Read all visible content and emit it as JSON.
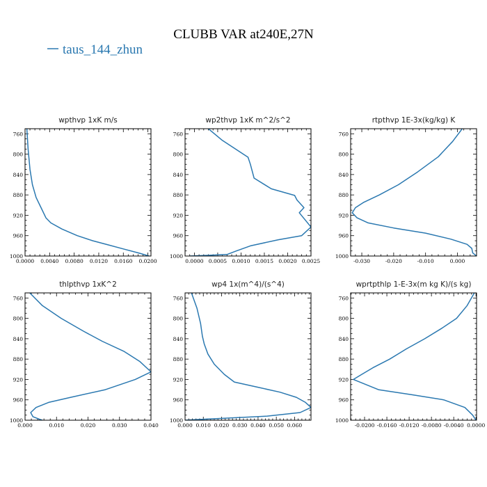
{
  "title": "CLUBB VAR at240E,27N",
  "legend": [
    {
      "label": "taus_144_zhun",
      "color": "#2a78b0"
    }
  ],
  "series_color": "#2a78b0",
  "chart_data": [
    {
      "type": "line",
      "title": "wpthvp  1xK m/s",
      "series_name": "taus_144_zhun",
      "xlim": [
        0.0,
        0.0205
      ],
      "ylim": [
        1000,
        750
      ],
      "y_inverted": true,
      "x_ticks": [
        0.0,
        0.004,
        0.008,
        0.012,
        0.016,
        0.02
      ],
      "x_tick_labels": [
        "0.0000",
        "0.0040",
        "0.0080",
        "0.0120",
        "0.0160",
        "0.0200"
      ],
      "y_ticks": [
        760,
        800,
        840,
        880,
        920,
        960,
        1000
      ],
      "y_tick_labels": [
        "760",
        "800",
        "840",
        "880",
        "920",
        "960",
        "1000"
      ],
      "x": [
        0.0003,
        0.0005,
        0.0008,
        0.0012,
        0.0018,
        0.0026,
        0.0034,
        0.0042,
        0.006,
        0.0085,
        0.011,
        0.0135,
        0.016,
        0.0185,
        0.0202
      ],
      "y": [
        750,
        790,
        830,
        860,
        885,
        905,
        925,
        935,
        947,
        960,
        970,
        978,
        986,
        994,
        1000
      ]
    },
    {
      "type": "line",
      "title": "wp2thvp  1xK m^2/s^2",
      "series_name": "taus_144_zhun",
      "xlim": [
        -0.0002,
        0.0025
      ],
      "ylim": [
        1000,
        750
      ],
      "y_inverted": true,
      "x_ticks": [
        0.0,
        0.0005,
        0.001,
        0.0015,
        0.002,
        0.0025
      ],
      "x_tick_labels": [
        "0.0000",
        "0.0005",
        "0.0010",
        "0.0015",
        "0.0020",
        "0.0025"
      ],
      "y_ticks": [
        760,
        800,
        840,
        880,
        920,
        960,
        1000
      ],
      "y_tick_labels": [
        "760",
        "800",
        "840",
        "880",
        "920",
        "960",
        "1000"
      ],
      "x": [
        0.0003,
        0.0006,
        0.00115,
        0.0012,
        0.00128,
        0.00165,
        0.00215,
        0.0022,
        0.00235,
        0.00225,
        0.0025,
        0.0023,
        0.0018,
        0.0012,
        0.0009,
        0.0007,
        0.0002,
        -0.0001
      ],
      "y": [
        750,
        773,
        806,
        820,
        847,
        868,
        881,
        890,
        905,
        915,
        943,
        960,
        968,
        980,
        990,
        997,
        999,
        1000
      ]
    },
    {
      "type": "line",
      "title": "rtpthvp  1E-3x(kg/kg) K",
      "series_name": "taus_144_zhun",
      "xlim": [
        -0.0335,
        0.006
      ],
      "ylim": [
        1000,
        750
      ],
      "y_inverted": true,
      "x_ticks": [
        -0.03,
        -0.02,
        -0.01,
        0.0
      ],
      "x_tick_labels": [
        "-0.030",
        "-0.020",
        "-0.010",
        "0.000"
      ],
      "y_ticks": [
        760,
        800,
        840,
        880,
        920,
        960,
        1000
      ],
      "y_tick_labels": [
        "760",
        "800",
        "840",
        "880",
        "920",
        "960",
        "1000"
      ],
      "x": [
        0.0015,
        -0.0015,
        -0.006,
        -0.0125,
        -0.0185,
        -0.0245,
        -0.0295,
        -0.032,
        -0.033,
        -0.0315,
        -0.028,
        -0.02,
        -0.01,
        -0.002,
        0.003,
        0.0045,
        0.0048,
        0.006
      ],
      "y": [
        750,
        775,
        805,
        835,
        860,
        880,
        895,
        905,
        915,
        925,
        935,
        945,
        955,
        967,
        977,
        985,
        994,
        1000
      ]
    },
    {
      "type": "line",
      "title": "thlpthvp  1xK^2",
      "series_name": "taus_144_zhun",
      "xlim": [
        0.0,
        0.04
      ],
      "ylim": [
        1000,
        750
      ],
      "y_inverted": true,
      "x_ticks": [
        0.0,
        0.01,
        0.02,
        0.03,
        0.04
      ],
      "x_tick_labels": [
        "0.000",
        "0.010",
        "0.020",
        "0.030",
        "0.040"
      ],
      "y_ticks": [
        760,
        800,
        840,
        880,
        920,
        960,
        1000
      ],
      "y_tick_labels": [
        "760",
        "800",
        "840",
        "880",
        "920",
        "960",
        "1000"
      ],
      "x": [
        0.0015,
        0.0055,
        0.0115,
        0.0185,
        0.0245,
        0.0315,
        0.0365,
        0.04,
        0.035,
        0.0255,
        0.0145,
        0.0075,
        0.0035,
        0.0018,
        0.0025,
        0.0045,
        0.0055
      ],
      "y": [
        750,
        775,
        800,
        825,
        845,
        865,
        885,
        905,
        920,
        940,
        955,
        965,
        975,
        985,
        993,
        998,
        1000
      ]
    },
    {
      "type": "line",
      "title": "wp4  1x(m^4)/(s^4)",
      "series_name": "taus_144_zhun",
      "xlim": [
        0.0,
        0.069
      ],
      "ylim": [
        1000,
        750
      ],
      "y_inverted": true,
      "x_ticks": [
        0.0,
        0.01,
        0.02,
        0.03,
        0.04,
        0.05,
        0.06
      ],
      "x_tick_labels": [
        "0.000",
        "0.010",
        "0.020",
        "0.030",
        "0.040",
        "0.050",
        "0.060"
      ],
      "y_ticks": [
        760,
        800,
        840,
        880,
        920,
        960,
        1000
      ],
      "y_tick_labels": [
        "760",
        "800",
        "840",
        "880",
        "920",
        "960",
        "1000"
      ],
      "x": [
        0.0035,
        0.0065,
        0.0085,
        0.0095,
        0.0105,
        0.0125,
        0.016,
        0.0215,
        0.027,
        0.0395,
        0.052,
        0.061,
        0.066,
        0.069,
        0.063,
        0.045,
        0.022,
        0.005,
        0.0
      ],
      "y": [
        750,
        780,
        810,
        835,
        850,
        870,
        890,
        910,
        925,
        935,
        945,
        955,
        965,
        975,
        985,
        992,
        996,
        999,
        1000
      ]
    },
    {
      "type": "line",
      "title": "wprtpthlp  1-E-3x(m kg K)/(s kg)",
      "series_name": "taus_144_zhun",
      "xlim": [
        -0.0225,
        0.0001
      ],
      "ylim": [
        1000,
        750
      ],
      "y_inverted": true,
      "x_ticks": [
        -0.02,
        -0.016,
        -0.012,
        -0.008,
        -0.004,
        0.0
      ],
      "x_tick_labels": [
        "-0.0200",
        "-0.0160",
        "-0.0120",
        "-0.0080",
        "-0.0040",
        "0.0000"
      ],
      "y_ticks": [
        760,
        800,
        840,
        880,
        920,
        960,
        1000
      ],
      "y_tick_labels": [
        "760",
        "800",
        "840",
        "880",
        "920",
        "960",
        "1000"
      ],
      "x": [
        -0.0003,
        -0.0016,
        -0.0035,
        -0.0062,
        -0.0092,
        -0.0125,
        -0.0155,
        -0.0185,
        -0.0205,
        -0.022,
        -0.0175,
        -0.0115,
        -0.0058,
        -0.002,
        -0.0006,
        0.0
      ],
      "y": [
        750,
        775,
        800,
        820,
        840,
        860,
        880,
        897,
        910,
        920,
        940,
        950,
        960,
        975,
        990,
        1000
      ]
    }
  ]
}
